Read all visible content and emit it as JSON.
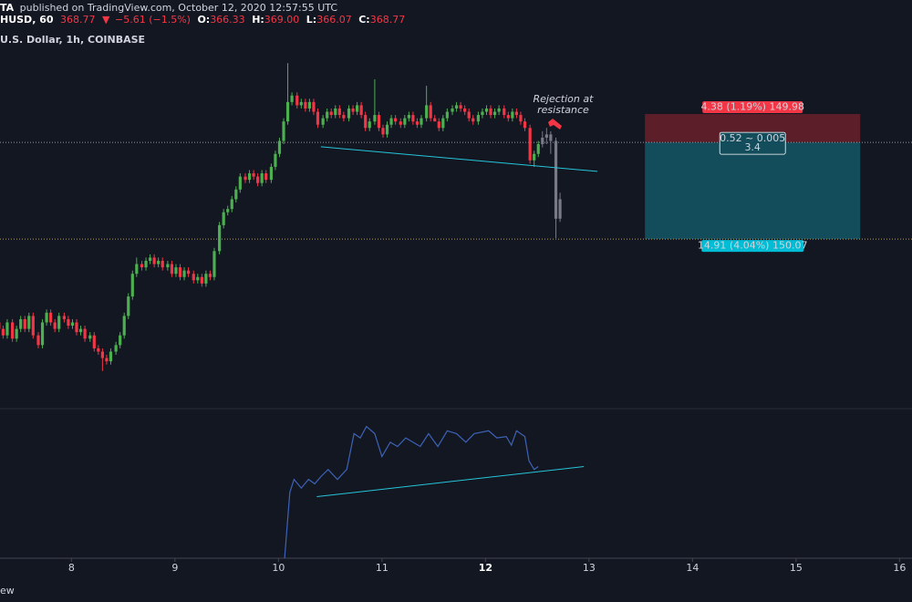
{
  "header": {
    "author": "TA",
    "published": "published on TradingView.com, October 12, 2020 12:57:55 UTC",
    "symbol": "HUSD, 60",
    "last": "368.77",
    "arrow": "▼",
    "change": "−5.61 (−1.5%)",
    "ohlc": [
      {
        "label": "O:",
        "value": "366.33"
      },
      {
        "label": "H:",
        "value": "369.00"
      },
      {
        "label": "L:",
        "value": "366.07"
      },
      {
        "label": "C:",
        "value": "368.77"
      }
    ]
  },
  "chart_data": {
    "type": "candlestick",
    "subtitle": "U.S. Dollar, 1h, COINBASE",
    "up_color": "#4caf50",
    "down_color": "#f23645",
    "xlim": [
      7.31,
      16.12
    ],
    "xticks": [
      8,
      9,
      10,
      11,
      12,
      13,
      14,
      15,
      16
    ],
    "bold_xtick": 12,
    "ylim": [
      327.7,
      383.0
    ],
    "x": [
      7.3,
      7.34,
      7.38,
      7.43,
      7.47,
      7.51,
      7.55,
      7.59,
      7.63,
      7.68,
      7.72,
      7.76,
      7.8,
      7.84,
      7.88,
      7.93,
      7.97,
      8.01,
      8.05,
      8.09,
      8.13,
      8.18,
      8.22,
      8.26,
      8.3,
      8.34,
      8.38,
      8.43,
      8.47,
      8.51,
      8.55,
      8.59,
      8.63,
      8.68,
      8.72,
      8.76,
      8.8,
      8.84,
      8.88,
      8.93,
      8.97,
      9.01,
      9.05,
      9.09,
      9.13,
      9.18,
      9.22,
      9.26,
      9.3,
      9.34,
      9.38,
      9.43,
      9.47,
      9.51,
      9.55,
      9.59,
      9.63,
      9.68,
      9.72,
      9.76,
      9.8,
      9.84,
      9.88,
      9.93,
      9.97,
      10.01,
      10.05,
      10.09,
      10.13,
      10.18,
      10.22,
      10.26,
      10.3,
      10.34,
      10.38,
      10.43,
      10.47,
      10.51,
      10.55,
      10.59,
      10.63,
      10.68,
      10.72,
      10.76,
      10.8,
      10.84,
      10.88,
      10.93,
      10.97,
      11.01,
      11.05,
      11.09,
      11.13,
      11.18,
      11.22,
      11.26,
      11.3,
      11.34,
      11.38,
      11.43,
      11.47,
      11.51,
      11.55,
      11.59,
      11.63,
      11.68,
      11.72,
      11.76,
      11.8,
      11.84,
      11.88,
      11.93,
      11.97,
      12.01,
      12.05,
      12.09,
      12.13,
      12.18,
      12.22,
      12.26,
      12.3,
      12.34,
      12.38,
      12.43,
      12.47,
      12.51
    ],
    "open": [
      341,
      340,
      339,
      341,
      338.5,
      340,
      341.5,
      340,
      342,
      339,
      337.5,
      341,
      342.5,
      341,
      340,
      342,
      341.5,
      340.5,
      341,
      339.5,
      340,
      338.5,
      339,
      337,
      336.5,
      335.5,
      335,
      336.5,
      337.5,
      339,
      342,
      345,
      348.5,
      350,
      349.5,
      350.5,
      351,
      350,
      350.5,
      349.5,
      350,
      348.5,
      349.5,
      348,
      349,
      348.5,
      347.5,
      348,
      347,
      348.5,
      348,
      352,
      356,
      358,
      358.5,
      360,
      361.5,
      363.5,
      363,
      364,
      363.5,
      362.5,
      364,
      363,
      365,
      367,
      369,
      372,
      375,
      376,
      374.5,
      375,
      374,
      375,
      373.5,
      371.5,
      372.5,
      373.5,
      373,
      374,
      373,
      372.5,
      374,
      373.5,
      374.5,
      373,
      371,
      372,
      373,
      371,
      370,
      371.5,
      372.5,
      372,
      371.5,
      372.5,
      373,
      372,
      371.5,
      372.5,
      374.5,
      372.5,
      372,
      371,
      372.5,
      373.5,
      374,
      374.5,
      374,
      373.5,
      372.5,
      372,
      373,
      373.5,
      374,
      373,
      373.5,
      374,
      373,
      372.5,
      373.5,
      373,
      372,
      371,
      366,
      367
    ],
    "high": [
      341.5,
      340.5,
      341.5,
      341.5,
      340.5,
      342,
      342,
      342.5,
      342.5,
      339.5,
      341.5,
      343,
      343,
      341.5,
      342.5,
      342.5,
      342,
      341.5,
      341.5,
      340.5,
      340.5,
      339.5,
      339.5,
      337.5,
      337,
      336,
      337,
      338,
      339.5,
      342.5,
      345.5,
      349,
      351,
      350.5,
      351,
      351.5,
      351.5,
      351,
      351,
      350.5,
      350.5,
      350,
      350,
      349.5,
      349.5,
      349,
      348.5,
      348.5,
      349,
      349,
      352.5,
      356.5,
      358.5,
      359,
      360.5,
      362,
      364,
      364,
      364.5,
      364.5,
      364,
      364.5,
      364.5,
      365.5,
      367.5,
      369.5,
      372.5,
      381,
      376.5,
      376.5,
      375.5,
      375.5,
      375.5,
      375.5,
      374,
      373,
      374,
      374,
      374.5,
      374.5,
      373.5,
      374.5,
      374.5,
      375,
      375,
      373.5,
      372.5,
      378.5,
      373.5,
      371.5,
      372,
      373,
      373,
      372.5,
      373,
      373.5,
      373.5,
      372.5,
      373,
      377.5,
      375,
      373,
      372.5,
      373,
      374,
      374.5,
      375,
      375,
      374.5,
      374,
      373,
      373.5,
      374,
      374.5,
      374.5,
      374,
      374.5,
      374.5,
      373.5,
      374,
      374,
      373.5,
      372.5,
      371.5,
      367.5,
      369
    ],
    "low": [
      339.5,
      338.5,
      338.5,
      338,
      338,
      339.5,
      339.5,
      339.5,
      338.5,
      337,
      337,
      340.5,
      340.5,
      339.5,
      339.5,
      341,
      340,
      340,
      339,
      339,
      338,
      338,
      336.5,
      336,
      333.5,
      334.5,
      334.5,
      336,
      337,
      338.5,
      341.5,
      344.5,
      348,
      349,
      349,
      350,
      349.5,
      349.5,
      349,
      349,
      348,
      348,
      347.5,
      347.5,
      348,
      347,
      347,
      346.5,
      346.5,
      347.5,
      347.5,
      351.5,
      355.5,
      357.5,
      358,
      359.5,
      361,
      362.5,
      362.5,
      363,
      362,
      362,
      362.5,
      362.5,
      364.5,
      366.5,
      368.5,
      371.5,
      374.5,
      374,
      374,
      373.5,
      373.5,
      373,
      371,
      371,
      372,
      372.5,
      372.5,
      372.5,
      372,
      372,
      373,
      373,
      372.5,
      370.5,
      370.5,
      371.5,
      370.5,
      369.5,
      369.5,
      371,
      371.5,
      371,
      371,
      372,
      371.5,
      371,
      371,
      372,
      372,
      372,
      370.5,
      370.5,
      372,
      373,
      373.5,
      373.5,
      373,
      372,
      371.5,
      371.5,
      372.5,
      373,
      372.5,
      372.5,
      373,
      372.5,
      372,
      372,
      372.5,
      371.5,
      370.5,
      365.5,
      365,
      366.5
    ],
    "close": [
      340,
      339,
      341,
      338.5,
      340,
      341.5,
      340,
      342,
      339,
      337.5,
      341,
      342.5,
      341,
      340,
      342,
      341.5,
      340.5,
      341,
      339.5,
      340,
      338.5,
      339,
      337,
      336.5,
      335.5,
      335,
      336.5,
      337.5,
      339,
      342,
      345,
      348.5,
      350,
      349.5,
      350.5,
      351,
      350,
      350.5,
      349.5,
      350,
      348.5,
      349.5,
      348,
      349,
      348.5,
      347.5,
      348,
      347,
      348.5,
      348,
      352,
      356,
      358,
      358.5,
      360,
      361.5,
      363.5,
      363,
      364,
      363.5,
      362.5,
      364,
      363,
      365,
      367,
      369,
      372,
      375,
      376,
      374.5,
      375,
      374,
      375,
      373.5,
      371.5,
      372.5,
      373.5,
      373,
      374,
      373,
      372.5,
      374,
      373.5,
      374.5,
      373,
      371,
      372,
      373,
      371,
      370,
      371.5,
      372.5,
      372,
      371.5,
      372.5,
      373,
      372,
      371.5,
      372.5,
      374.5,
      372.5,
      372,
      371,
      372.5,
      373.5,
      374,
      374.5,
      374,
      373.5,
      372.5,
      372,
      373,
      373.5,
      374,
      373,
      373.5,
      374,
      373,
      372.5,
      373.5,
      373,
      372,
      371,
      366,
      367,
      368.5
    ],
    "projection": {
      "color": "#787b86",
      "x": [
        12.55,
        12.59,
        12.63,
        12.68,
        12.72
      ],
      "open": [
        368.5,
        369.5,
        370,
        369,
        357
      ],
      "high": [
        370.5,
        371,
        370.5,
        369.5,
        361
      ],
      "low": [
        368,
        368.5,
        367,
        354,
        356.5
      ],
      "close": [
        369.5,
        370,
        369,
        357,
        360
      ]
    },
    "trendline": {
      "color": "#26c6da",
      "x": [
        10.41,
        13.08
      ],
      "y": [
        368.1,
        364.3
      ]
    },
    "annotation": {
      "text": [
        "Rejection at",
        "resistance"
      ],
      "color": "#f0c419",
      "x": 12.75,
      "y": 375.4
    },
    "position": {
      "x": [
        13.54,
        15.62
      ],
      "entry": 368.77,
      "stop": 373.15,
      "target": 353.86,
      "stop_label": "4.38 (1.19%) 149.98",
      "mid_label": [
        "0.52 ~ 0.005",
        "3.4"
      ],
      "target_label": "14.91 (4.04%) 150.07",
      "stop_color": "#5c1f2a",
      "target_color": "#134c5a",
      "stop_label_color": "#f23645",
      "target_label_color": "#00bcd4"
    },
    "oscillator": {
      "color": "#3d63b8",
      "ylim": [
        0,
        100
      ],
      "x": [
        10.06,
        10.11,
        10.15,
        10.22,
        10.29,
        10.35,
        10.41,
        10.48,
        10.57,
        10.66,
        10.73,
        10.79,
        10.85,
        10.93,
        11.0,
        11.08,
        11.15,
        11.23,
        11.37,
        11.45,
        11.54,
        11.63,
        11.72,
        11.81,
        11.89,
        12.03,
        12.11,
        12.2,
        12.25,
        12.3,
        12.38,
        12.42,
        12.47,
        12.51
      ],
      "values": [
        0,
        46,
        55,
        49,
        55,
        52,
        57,
        62,
        55,
        62,
        87,
        84,
        92,
        87,
        71,
        81,
        78,
        84,
        78,
        87,
        78,
        89,
        87,
        81,
        87,
        89,
        84,
        85,
        79,
        89,
        85,
        68,
        62,
        64
      ],
      "trendline": {
        "color": "#26c6da",
        "x": [
          10.37,
          12.95
        ],
        "y": [
          43,
          64
        ]
      }
    }
  },
  "footer": "ew"
}
